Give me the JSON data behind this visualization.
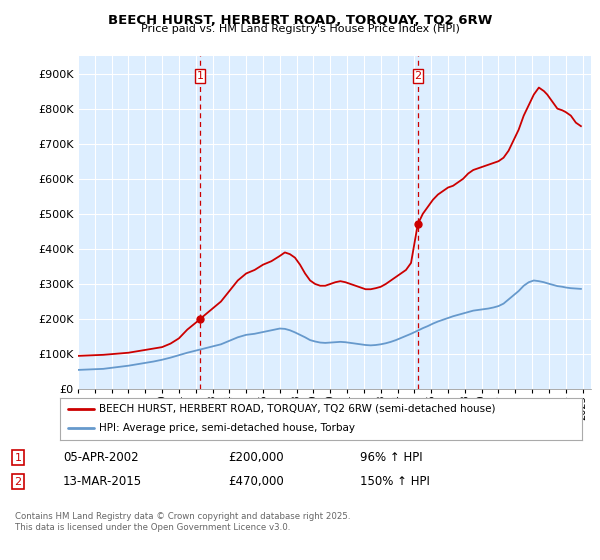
{
  "title": "BEECH HURST, HERBERT ROAD, TORQUAY, TQ2 6RW",
  "subtitle": "Price paid vs. HM Land Registry's House Price Index (HPI)",
  "legend_label_red": "BEECH HURST, HERBERT ROAD, TORQUAY, TQ2 6RW (semi-detached house)",
  "legend_label_blue": "HPI: Average price, semi-detached house, Torbay",
  "annotation1_label": "1",
  "annotation1_date": "05-APR-2002",
  "annotation1_price": "£200,000",
  "annotation1_hpi": "96% ↑ HPI",
  "annotation2_label": "2",
  "annotation2_date": "13-MAR-2015",
  "annotation2_price": "£470,000",
  "annotation2_hpi": "150% ↑ HPI",
  "footer": "Contains HM Land Registry data © Crown copyright and database right 2025.\nThis data is licensed under the Open Government Licence v3.0.",
  "red_color": "#cc0000",
  "blue_color": "#6699cc",
  "dashed_vline_color": "#cc0000",
  "background_chart": "#ddeeff",
  "background_fig": "#ffffff",
  "grid_color": "#ffffff",
  "ylim": [
    0,
    950000
  ],
  "yticks": [
    0,
    100000,
    200000,
    300000,
    400000,
    500000,
    600000,
    700000,
    800000,
    900000
  ],
  "xlim_start": 1995.0,
  "xlim_end": 2025.5,
  "marker1_x": 2002.27,
  "marker1_y": 200000,
  "marker2_x": 2015.2,
  "marker2_y": 470000,
  "red_x": [
    1995.0,
    1995.5,
    1996.0,
    1996.5,
    1997.0,
    1997.5,
    1998.0,
    1998.5,
    1999.0,
    1999.5,
    2000.0,
    2000.5,
    2001.0,
    2001.5,
    2002.27,
    2002.5,
    2003.0,
    2003.5,
    2004.0,
    2004.5,
    2005.0,
    2005.5,
    2006.0,
    2006.5,
    2007.0,
    2007.3,
    2007.6,
    2007.9,
    2008.2,
    2008.5,
    2008.8,
    2009.1,
    2009.4,
    2009.7,
    2010.0,
    2010.3,
    2010.6,
    2010.9,
    2011.2,
    2011.5,
    2011.8,
    2012.1,
    2012.4,
    2012.7,
    2013.0,
    2013.3,
    2013.6,
    2013.9,
    2014.2,
    2014.5,
    2014.8,
    2015.2,
    2015.5,
    2015.8,
    2016.1,
    2016.4,
    2016.7,
    2017.0,
    2017.3,
    2017.6,
    2017.9,
    2018.2,
    2018.5,
    2018.8,
    2019.1,
    2019.4,
    2019.7,
    2020.0,
    2020.3,
    2020.6,
    2020.9,
    2021.2,
    2021.5,
    2021.8,
    2022.1,
    2022.4,
    2022.7,
    2022.9,
    2023.2,
    2023.5,
    2023.8,
    2024.0,
    2024.3,
    2024.6,
    2024.9
  ],
  "red_y": [
    95000,
    96000,
    97000,
    98000,
    100000,
    102000,
    104000,
    108000,
    112000,
    116000,
    120000,
    130000,
    145000,
    170000,
    200000,
    210000,
    230000,
    250000,
    280000,
    310000,
    330000,
    340000,
    355000,
    365000,
    380000,
    390000,
    385000,
    375000,
    355000,
    330000,
    310000,
    300000,
    295000,
    295000,
    300000,
    305000,
    308000,
    305000,
    300000,
    295000,
    290000,
    285000,
    285000,
    288000,
    292000,
    300000,
    310000,
    320000,
    330000,
    340000,
    360000,
    470000,
    500000,
    520000,
    540000,
    555000,
    565000,
    575000,
    580000,
    590000,
    600000,
    615000,
    625000,
    630000,
    635000,
    640000,
    645000,
    650000,
    660000,
    680000,
    710000,
    740000,
    780000,
    810000,
    840000,
    860000,
    850000,
    840000,
    820000,
    800000,
    795000,
    790000,
    780000,
    760000,
    750000
  ],
  "blue_x": [
    1995.0,
    1995.5,
    1996.0,
    1996.5,
    1997.0,
    1997.5,
    1998.0,
    1998.5,
    1999.0,
    1999.5,
    2000.0,
    2000.5,
    2001.0,
    2001.5,
    2002.0,
    2002.5,
    2003.0,
    2003.5,
    2004.0,
    2004.5,
    2005.0,
    2005.5,
    2006.0,
    2006.5,
    2007.0,
    2007.3,
    2007.6,
    2007.9,
    2008.2,
    2008.5,
    2008.8,
    2009.1,
    2009.4,
    2009.7,
    2010.0,
    2010.3,
    2010.6,
    2010.9,
    2011.2,
    2011.5,
    2011.8,
    2012.1,
    2012.4,
    2012.7,
    2013.0,
    2013.3,
    2013.6,
    2013.9,
    2014.2,
    2014.5,
    2014.8,
    2015.2,
    2015.5,
    2015.8,
    2016.1,
    2016.4,
    2016.7,
    2017.0,
    2017.3,
    2017.6,
    2017.9,
    2018.2,
    2018.5,
    2018.8,
    2019.1,
    2019.4,
    2019.7,
    2020.0,
    2020.3,
    2020.6,
    2020.9,
    2021.2,
    2021.5,
    2021.8,
    2022.1,
    2022.4,
    2022.7,
    2022.9,
    2023.2,
    2023.5,
    2023.8,
    2024.0,
    2024.3,
    2024.6,
    2024.9
  ],
  "blue_y": [
    55000,
    56000,
    57000,
    58000,
    61000,
    64000,
    67000,
    71000,
    75000,
    79000,
    84000,
    90000,
    97000,
    104000,
    110000,
    116000,
    122000,
    128000,
    138000,
    148000,
    155000,
    158000,
    163000,
    168000,
    173000,
    172000,
    168000,
    162000,
    155000,
    148000,
    140000,
    136000,
    133000,
    132000,
    133000,
    134000,
    135000,
    134000,
    132000,
    130000,
    128000,
    126000,
    125000,
    126000,
    128000,
    131000,
    135000,
    140000,
    146000,
    152000,
    158000,
    167000,
    174000,
    180000,
    187000,
    193000,
    198000,
    203000,
    208000,
    212000,
    216000,
    220000,
    224000,
    226000,
    228000,
    230000,
    233000,
    237000,
    244000,
    256000,
    268000,
    280000,
    295000,
    305000,
    310000,
    308000,
    305000,
    302000,
    298000,
    294000,
    292000,
    290000,
    288000,
    287000,
    286000
  ]
}
